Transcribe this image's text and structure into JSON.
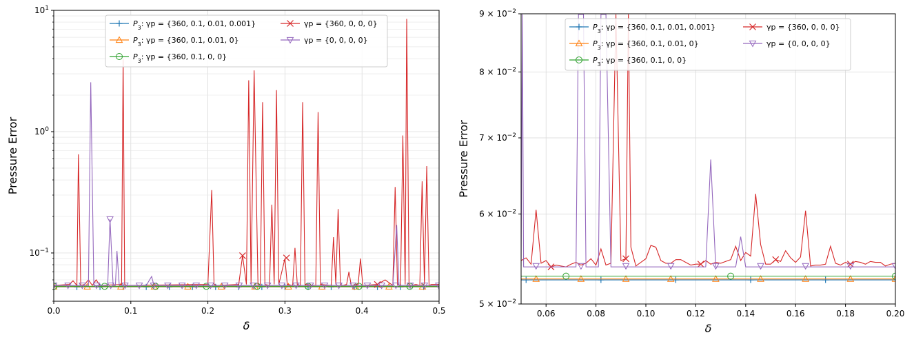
{
  "chart_data": [
    {
      "type": "line",
      "title": "",
      "xlabel": "δ",
      "ylabel": "Pressure Error",
      "xscale": "linear",
      "yscale": "log",
      "xlim": [
        0,
        0.5
      ],
      "ylim": [
        0.04,
        10
      ],
      "grid": "major and minor (y)",
      "legend_position": "top",
      "legend_columns": 2,
      "xticks": [
        {
          "value": 0.0,
          "label": "0.0"
        },
        {
          "value": 0.1,
          "label": "0.1"
        },
        {
          "value": 0.2,
          "label": "0.2"
        },
        {
          "value": 0.3,
          "label": "0.3"
        },
        {
          "value": 0.4,
          "label": "0.4"
        },
        {
          "value": 0.5,
          "label": "0.5"
        }
      ],
      "yticks": [
        {
          "value": 0.1,
          "base": "10",
          "exp": "−1"
        },
        {
          "value": 1,
          "base": "10",
          "exp": "0"
        },
        {
          "value": 10,
          "base": "10",
          "exp": "1"
        }
      ],
      "series": [
        {
          "key": "s1",
          "name_prefix": "P",
          "name_sub": "3",
          "name_rest": ": γp = {360, 0.1, 0.01, 0.001}",
          "color": "#1f77b4",
          "marker": "plus",
          "x": [
            0,
            0.5
          ],
          "values": [
            0.0525,
            0.0525
          ],
          "marker_every": 0.03,
          "marker_offset": 0.0
        },
        {
          "key": "s2",
          "name_prefix": "P",
          "name_sub": "3",
          "name_rest": ": γp = {360, 0.1, 0.01, 0}",
          "color": "#ff7f0e",
          "marker": "triangle-up",
          "x": [
            0,
            0.5
          ],
          "values": [
            0.0528,
            0.0528
          ],
          "marker_every": 0.0435,
          "marker_offset": 0.0
        },
        {
          "key": "s3",
          "name_prefix": "P",
          "name_sub": "3",
          "name_rest": ": γp = {360, 0.1, 0, 0}",
          "color": "#2ca02c",
          "marker": "circle",
          "x": [
            0,
            0.5
          ],
          "values": [
            0.0531,
            0.0531
          ],
          "marker_every": 0.066,
          "marker_offset": 0.0
        },
        {
          "key": "s4",
          "name_prefix": "",
          "name_sub": "",
          "name_rest": "γp = {360, 0, 0, 0}",
          "color": "#d62728",
          "marker": "x",
          "x": [
            0,
            0.02,
            0.025,
            0.03,
            0.032,
            0.035,
            0.04,
            0.045,
            0.05,
            0.055,
            0.06,
            0.088,
            0.09,
            0.092,
            0.095,
            0.2,
            0.205,
            0.208,
            0.212,
            0.24,
            0.245,
            0.25,
            0.253,
            0.256,
            0.26,
            0.265,
            0.268,
            0.271,
            0.274,
            0.28,
            0.283,
            0.286,
            0.289,
            0.292,
            0.3,
            0.303,
            0.31,
            0.313,
            0.316,
            0.32,
            0.323,
            0.326,
            0.34,
            0.343,
            0.346,
            0.36,
            0.363,
            0.366,
            0.369,
            0.372,
            0.375,
            0.38,
            0.383,
            0.386,
            0.395,
            0.398,
            0.401,
            0.42,
            0.43,
            0.44,
            0.443,
            0.446,
            0.45,
            0.453,
            0.456,
            0.458,
            0.461,
            0.464,
            0.47,
            0.475,
            0.478,
            0.481,
            0.484,
            0.487,
            0.49,
            0.5
          ],
          "values": [
            0.054,
            0.055,
            0.059,
            0.054,
            0.65,
            0.054,
            0.055,
            0.06,
            0.054,
            0.06,
            0.054,
            0.055,
            4.0,
            0.055,
            0.054,
            0.055,
            0.33,
            0.055,
            0.054,
            0.055,
            0.095,
            0.055,
            2.65,
            0.055,
            3.2,
            0.055,
            0.054,
            1.75,
            0.055,
            0.054,
            0.25,
            0.055,
            2.2,
            0.055,
            0.09,
            0.055,
            0.054,
            0.11,
            0.055,
            0.054,
            1.75,
            0.055,
            0.054,
            1.45,
            0.055,
            0.054,
            0.135,
            0.055,
            0.23,
            0.055,
            0.054,
            0.055,
            0.07,
            0.054,
            0.055,
            0.09,
            0.054,
            0.055,
            0.06,
            0.054,
            0.35,
            0.055,
            0.054,
            0.93,
            0.055,
            8.5,
            0.055,
            0.054,
            0.055,
            0.054,
            0.39,
            0.055,
            0.52,
            0.054,
            0.055,
            0.055
          ],
          "marker_points": [
            [
              0.245,
              0.095
            ],
            [
              0.302,
              0.091
            ],
            [
              0.42,
              0.055
            ]
          ]
        },
        {
          "key": "s5",
          "name_prefix": "",
          "name_sub": "",
          "name_rest": "γp = {0, 0, 0, 0}",
          "color": "#9467bd",
          "marker": "triangle-down",
          "x": [
            0,
            0.045,
            0.048,
            0.052,
            0.07,
            0.073,
            0.077,
            0.08,
            0.082,
            0.085,
            0.12,
            0.127,
            0.13,
            0.44,
            0.445,
            0.448,
            0.5
          ],
          "values": [
            0.054,
            0.054,
            2.55,
            0.054,
            0.054,
            0.19,
            0.054,
            0.054,
            0.104,
            0.054,
            0.054,
            0.064,
            0.054,
            0.054,
            0.17,
            0.054,
            0.054
          ],
          "marker_every": 0.0185,
          "marker_offset": 0.0,
          "marker_points": [
            [
              0.073,
              0.19
            ]
          ]
        }
      ]
    },
    {
      "type": "line",
      "title": "",
      "xlabel": "δ",
      "ylabel": "Pressure Error",
      "xscale": "linear",
      "yscale": "log",
      "xlim": [
        0.05,
        0.2
      ],
      "ylim": [
        0.05,
        0.09
      ],
      "grid": "major",
      "legend_position": "top",
      "legend_columns": 2,
      "xticks": [
        {
          "value": 0.06,
          "label": "0.06"
        },
        {
          "value": 0.08,
          "label": "0.08"
        },
        {
          "value": 0.1,
          "label": "0.10"
        },
        {
          "value": 0.12,
          "label": "0.12"
        },
        {
          "value": 0.14,
          "label": "0.14"
        },
        {
          "value": 0.16,
          "label": "0.16"
        },
        {
          "value": 0.18,
          "label": "0.18"
        },
        {
          "value": 0.2,
          "label": "0.20"
        }
      ],
      "yticks": [
        {
          "value": 0.05,
          "mant": "5 × ",
          "base": "10",
          "exp": "−2"
        },
        {
          "value": 0.06,
          "mant": "6 × ",
          "base": "10",
          "exp": "−2"
        },
        {
          "value": 0.07,
          "mant": "7 × ",
          "base": "10",
          "exp": "−2"
        },
        {
          "value": 0.08,
          "mant": "8 × ",
          "base": "10",
          "exp": "−2"
        },
        {
          "value": 0.09,
          "mant": "9 × ",
          "base": "10",
          "exp": "−2"
        }
      ],
      "series": [
        {
          "key": "s1",
          "name_prefix": "P",
          "name_sub": "3",
          "name_rest": ": γp = {360, 0.1, 0.01, 0.001}",
          "color": "#1f77b4",
          "marker": "plus",
          "x": [
            0.05,
            0.2
          ],
          "values": [
            0.0525,
            0.0525
          ],
          "marker_every": 0.03,
          "marker_offset": 0.002
        },
        {
          "key": "s2",
          "name_prefix": "P",
          "name_sub": "3",
          "name_rest": ": γp = {360, 0.1, 0.01, 0}",
          "color": "#ff7f0e",
          "marker": "triangle-up",
          "x": [
            0.05,
            0.2
          ],
          "values": [
            0.0526,
            0.0526
          ],
          "marker_every": 0.018,
          "marker_offset": 0.006
        },
        {
          "key": "s3",
          "name_prefix": "P",
          "name_sub": "3",
          "name_rest": ": γp = {360, 0.1, 0, 0}",
          "color": "#2ca02c",
          "marker": "circle",
          "x": [
            0.05,
            0.2
          ],
          "values": [
            0.0529,
            0.0529
          ],
          "marker_every": 0.066,
          "marker_offset": 0.018
        },
        {
          "key": "s4",
          "name_prefix": "",
          "name_sub": "",
          "name_rest": "γp = {360, 0, 0, 0}",
          "color": "#d62728",
          "marker": "x",
          "x": [
            0.05,
            0.052,
            0.054,
            0.056,
            0.058,
            0.06,
            0.062,
            0.064,
            0.066,
            0.068,
            0.07,
            0.072,
            0.074,
            0.076,
            0.078,
            0.08,
            0.082,
            0.084,
            0.086,
            0.088,
            0.09,
            0.092,
            0.093,
            0.094,
            0.096,
            0.098,
            0.1,
            0.102,
            0.104,
            0.106,
            0.108,
            0.11,
            0.112,
            0.114,
            0.116,
            0.118,
            0.12,
            0.122,
            0.124,
            0.126,
            0.128,
            0.13,
            0.132,
            0.134,
            0.136,
            0.138,
            0.14,
            0.142,
            0.144,
            0.146,
            0.148,
            0.15,
            0.152,
            0.154,
            0.156,
            0.158,
            0.16,
            0.162,
            0.164,
            0.166,
            0.168,
            0.17,
            0.172,
            0.174,
            0.176,
            0.178,
            0.18,
            0.182,
            0.184,
            0.186,
            0.188,
            0.19,
            0.192,
            0.194,
            0.196,
            0.198,
            0.2
          ],
          "values": [
            0.0546,
            0.0549,
            0.0542,
            0.0605,
            0.0543,
            0.0546,
            0.0539,
            0.0541,
            0.054,
            0.0539,
            0.0542,
            0.0544,
            0.0541,
            0.0543,
            0.0548,
            0.0541,
            0.0559,
            0.0541,
            0.0543,
            0.0899,
            0.0546,
            0.0548,
            0.0899,
            0.0561,
            0.054,
            0.0544,
            0.0548,
            0.0563,
            0.0561,
            0.0546,
            0.0543,
            0.0543,
            0.0547,
            0.0547,
            0.0544,
            0.0541,
            0.0542,
            0.0542,
            0.0546,
            0.0542,
            0.0544,
            0.0543,
            0.0545,
            0.0547,
            0.0562,
            0.0546,
            0.0555,
            0.0551,
            0.0625,
            0.0564,
            0.0542,
            0.0542,
            0.0547,
            0.0545,
            0.0557,
            0.0549,
            0.0544,
            0.055,
            0.0604,
            0.054,
            0.0541,
            0.0541,
            0.0542,
            0.0562,
            0.0543,
            0.0541,
            0.0544,
            0.0542,
            0.0545,
            0.0544,
            0.0542,
            0.0545,
            0.0544,
            0.0544,
            0.054,
            0.0542,
            0.0543
          ],
          "marker_every": 0.03,
          "marker_offset": 0.012
        },
        {
          "key": "s5",
          "name_prefix": "",
          "name_sub": "",
          "name_rest": "γp = {0, 0, 0, 0}",
          "color": "#9467bd",
          "marker": "triangle-down",
          "x": [
            0.05,
            0.0505,
            0.051,
            0.072,
            0.073,
            0.075,
            0.076,
            0.081,
            0.082,
            0.084,
            0.086,
            0.124,
            0.126,
            0.128,
            0.136,
            0.138,
            0.14,
            0.142,
            0.2
          ],
          "values": [
            0.054,
            0.0899,
            0.0539,
            0.0539,
            0.0899,
            0.0899,
            0.0539,
            0.0539,
            0.0899,
            0.0899,
            0.0539,
            0.0539,
            0.067,
            0.0539,
            0.0539,
            0.0573,
            0.0539,
            0.0539,
            0.0539
          ],
          "marker_every": 0.018,
          "marker_offset": 0.006
        }
      ]
    }
  ]
}
